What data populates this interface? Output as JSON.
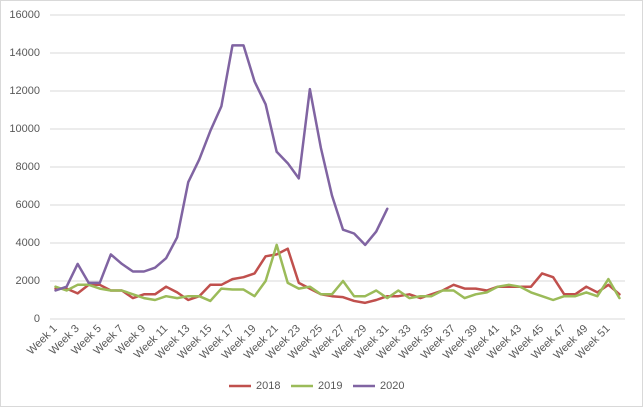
{
  "chart_data": {
    "type": "line",
    "categories": [
      "Week 1",
      null,
      "Week 3",
      null,
      "Week 5",
      null,
      "Week 7",
      null,
      "Week 9",
      null,
      "Week 11",
      null,
      "Week 13",
      null,
      "Week 15",
      null,
      "Week 17",
      null,
      "Week 19",
      null,
      "Week 21",
      null,
      "Week 23",
      null,
      "Week 25",
      null,
      "Week 27",
      null,
      "Week 29",
      null,
      "Week 31",
      null,
      "Week 33",
      null,
      "Week 35",
      null,
      "Week 37",
      null,
      "Week 39",
      null,
      "Week 41",
      null,
      "Week 43",
      null,
      "Week 45",
      null,
      "Week 47",
      null,
      "Week 49",
      null,
      "Week 51",
      null
    ],
    "series": [
      {
        "name": "2018",
        "color": "#c0504d",
        "values": [
          1600,
          1600,
          1350,
          1800,
          1800,
          1500,
          1500,
          1100,
          1300,
          1300,
          1700,
          1400,
          1000,
          1200,
          1800,
          1800,
          2100,
          2200,
          2400,
          3300,
          3400,
          3700,
          1900,
          1600,
          1300,
          1200,
          1150,
          950,
          850,
          1000,
          1200,
          1200,
          1300,
          1100,
          1300,
          1500,
          1800,
          1600,
          1600,
          1500,
          1700,
          1700,
          1700,
          1700,
          2400,
          2200,
          1300,
          1300,
          1700,
          1400,
          1800,
          1300
        ]
      },
      {
        "name": "2019",
        "color": "#9bbb59",
        "values": [
          1700,
          1500,
          1800,
          1800,
          1600,
          1500,
          1500,
          1300,
          1100,
          1000,
          1200,
          1100,
          1200,
          1200,
          950,
          1600,
          1550,
          1550,
          1200,
          2000,
          3900,
          1900,
          1600,
          1700,
          1300,
          1300,
          2000,
          1200,
          1200,
          1500,
          1100,
          1500,
          1100,
          1200,
          1200,
          1500,
          1500,
          1100,
          1300,
          1400,
          1700,
          1800,
          1700,
          1400,
          1200,
          1000,
          1200,
          1200,
          1400,
          1200,
          2100,
          1100
        ]
      },
      {
        "name": "2020",
        "color": "#8064a2",
        "values": [
          1500,
          1700,
          2900,
          1900,
          1900,
          3400,
          2900,
          2500,
          2500,
          2700,
          3200,
          4300,
          7200,
          8400,
          9900,
          11200,
          14400,
          14400,
          12500,
          11300,
          8800,
          8200,
          7400,
          12100,
          9000,
          6500,
          4700,
          4500,
          3900,
          4600,
          5800,
          null,
          null,
          null,
          null,
          null,
          null,
          null,
          null,
          null,
          null,
          null,
          null,
          null,
          null,
          null,
          null,
          null,
          null,
          null,
          null,
          null
        ]
      }
    ],
    "ylim": [
      0,
      16000
    ],
    "yticks": [
      0,
      2000,
      4000,
      6000,
      8000,
      10000,
      12000,
      14000,
      16000
    ],
    "grid": true,
    "legend": "bottom"
  }
}
